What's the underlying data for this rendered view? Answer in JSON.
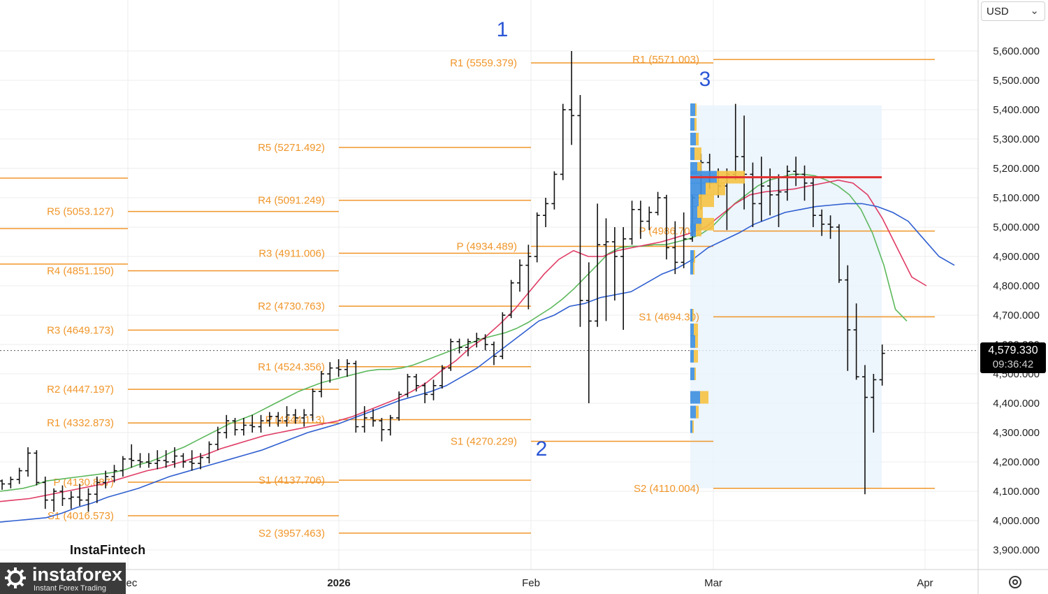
{
  "toolbar": {
    "currency": "USD"
  },
  "last_price": {
    "value": "4,579.330",
    "countdown": "09:36:42"
  },
  "branding": {
    "watermark": "InstaFintech",
    "logo_name": "instaforex",
    "logo_tagline": "Instant Forex Trading"
  },
  "colors": {
    "pivot": "#f0962a",
    "ma_fast": "#5cb85c",
    "ma_mid": "#e03c64",
    "ma_slow": "#2f5fd0",
    "poc": "#e03030",
    "profile_blue": "#3d8fe0",
    "profile_yellow": "#f5c242",
    "wave_label": "#2a56d6"
  },
  "chart_data": {
    "type": "line",
    "subtype": "ohlc-bars-with-pivot-levels",
    "yaxis": {
      "ticks": [
        "3,900.000",
        "4,000.000",
        "4,100.000",
        "4,200.000",
        "4,300.000",
        "4,400.000",
        "4,500.000",
        "4,600.000",
        "4,700.000",
        "4,800.000",
        "4,900.000",
        "5,000.000",
        "5,100.000",
        "5,200.000",
        "5,300.000",
        "5,400.000",
        "5,500.000",
        "5,600.000"
      ],
      "ylim": [
        3860,
        5660
      ]
    },
    "xaxis": {
      "ticks": [
        "Dec",
        "2026",
        "Feb",
        "Mar",
        "Apr"
      ]
    },
    "wave_labels": [
      {
        "text": "1",
        "x": "Jan 27",
        "y": 5660
      },
      {
        "text": "2",
        "x": "Feb 01",
        "y": 4200
      },
      {
        "text": "3",
        "x": "Feb 28",
        "y": 5490
      }
    ],
    "pivot_levels": [
      {
        "label": "R5 (5053.127)",
        "value": 5053.127,
        "period": "Dec"
      },
      {
        "label": "R4 (4851.150)",
        "value": 4851.15,
        "period": "Dec"
      },
      {
        "label": "R3 (4649.173)",
        "value": 4649.173,
        "period": "Dec"
      },
      {
        "label": "R2 (4447.197)",
        "value": 4447.197,
        "period": "Dec"
      },
      {
        "label": "R1 (4332.873)",
        "value": 4332.873,
        "period": "Dec"
      },
      {
        "label": "P (4130.887)",
        "value": 4130.887,
        "period": "Dec"
      },
      {
        "label": "S1 (4016.573)",
        "value": 4016.573,
        "period": "Dec"
      },
      {
        "label": "R5 (5271.492)",
        "value": 5271.492,
        "period": "Jan"
      },
      {
        "label": "R4 (5091.249)",
        "value": 5091.249,
        "period": "Jan"
      },
      {
        "label": "R3 (4911.006)",
        "value": 4911.006,
        "period": "Jan"
      },
      {
        "label": "R2 (4730.763)",
        "value": 4730.763,
        "period": "Jan"
      },
      {
        "label": "R1 (4524.356)",
        "value": 4524.356,
        "period": "Jan"
      },
      {
        "label": "P (4344.113)",
        "value": 4344.113,
        "period": "Jan"
      },
      {
        "label": "S1 (4137.706)",
        "value": 4137.706,
        "period": "Jan"
      },
      {
        "label": "S2 (3957.463)",
        "value": 3957.463,
        "period": "Jan"
      },
      {
        "label": "R1 (5559.379)",
        "value": 5559.379,
        "period": "Feb"
      },
      {
        "label": "P (4934.489)",
        "value": 4934.489,
        "period": "Feb"
      },
      {
        "label": "S1 (4270.229)",
        "value": 4270.229,
        "period": "Feb"
      },
      {
        "label": "R1 (5571.003)",
        "value": 5571.003,
        "period": "Mar"
      },
      {
        "label": "P (4986.702)",
        "value": 4986.702,
        "period": "Mar"
      },
      {
        "label": "S1 (4694.30)",
        "value": 4694.3,
        "period": "Mar"
      },
      {
        "label": "S2 (4110.004)",
        "value": 4110.004,
        "period": "Mar"
      }
    ],
    "ohlc_series": {
      "name": "",
      "bars": [
        [
          4135,
          4140,
          4105,
          4125
        ],
        [
          4125,
          4150,
          4110,
          4140
        ],
        [
          4140,
          4180,
          4125,
          4170
        ],
        [
          4170,
          4250,
          4150,
          4230
        ],
        [
          4230,
          4240,
          4120,
          4130
        ],
        [
          4130,
          4150,
          4040,
          4070
        ],
        [
          4070,
          4110,
          4030,
          4100
        ],
        [
          4100,
          4120,
          4050,
          4075
        ],
        [
          4075,
          4100,
          4040,
          4080
        ],
        [
          4080,
          4125,
          4050,
          4070
        ],
        [
          4070,
          4110,
          4030,
          4090
        ],
        [
          4090,
          4150,
          4060,
          4130
        ],
        [
          4130,
          4170,
          4110,
          4150
        ],
        [
          4150,
          4190,
          4130,
          4170
        ],
        [
          4170,
          4220,
          4150,
          4210
        ],
        [
          4210,
          4260,
          4180,
          4205
        ],
        [
          4205,
          4230,
          4180,
          4200
        ],
        [
          4200,
          4230,
          4180,
          4195
        ],
        [
          4195,
          4240,
          4175,
          4205
        ],
        [
          4205,
          4240,
          4180,
          4200
        ],
        [
          4200,
          4250,
          4180,
          4220
        ],
        [
          4220,
          4230,
          4180,
          4200
        ],
        [
          4200,
          4240,
          4170,
          4195
        ],
        [
          4195,
          4230,
          4175,
          4215
        ],
        [
          4215,
          4270,
          4195,
          4260
        ],
        [
          4260,
          4320,
          4240,
          4300
        ],
        [
          4300,
          4360,
          4280,
          4340
        ],
        [
          4340,
          4350,
          4290,
          4310
        ],
        [
          4310,
          4350,
          4290,
          4325
        ],
        [
          4325,
          4360,
          4300,
          4320
        ],
        [
          4320,
          4360,
          4300,
          4340
        ],
        [
          4340,
          4370,
          4320,
          4355
        ],
        [
          4355,
          4370,
          4320,
          4340
        ],
        [
          4340,
          4390,
          4320,
          4360
        ],
        [
          4360,
          4380,
          4330,
          4350
        ],
        [
          4350,
          4380,
          4320,
          4360
        ],
        [
          4360,
          4450,
          4340,
          4440
        ],
        [
          4440,
          4510,
          4420,
          4500
        ],
        [
          4500,
          4540,
          4470,
          4520
        ],
        [
          4520,
          4550,
          4490,
          4515
        ],
        [
          4515,
          4550,
          4490,
          4535
        ],
        [
          4535,
          4545,
          4300,
          4320
        ],
        [
          4320,
          4390,
          4300,
          4350
        ],
        [
          4350,
          4380,
          4320,
          4340
        ],
        [
          4340,
          4350,
          4270,
          4310
        ],
        [
          4310,
          4360,
          4290,
          4350
        ],
        [
          4350,
          4440,
          4340,
          4430
        ],
        [
          4430,
          4500,
          4420,
          4490
        ],
        [
          4490,
          4500,
          4440,
          4460
        ],
        [
          4460,
          4470,
          4400,
          4430
        ],
        [
          4430,
          4480,
          4410,
          4460
        ],
        [
          4460,
          4530,
          4450,
          4520
        ],
        [
          4520,
          4620,
          4510,
          4610
        ],
        [
          4610,
          4620,
          4570,
          4590
        ],
        [
          4590,
          4620,
          4560,
          4610
        ],
        [
          4610,
          4640,
          4590,
          4620
        ],
        [
          4620,
          4635,
          4580,
          4600
        ],
        [
          4600,
          4610,
          4530,
          4560
        ],
        [
          4560,
          4710,
          4550,
          4700
        ],
        [
          4700,
          4820,
          4690,
          4810
        ],
        [
          4810,
          4890,
          4780,
          4870
        ],
        [
          4870,
          4940,
          4720,
          4900
        ],
        [
          4900,
          5050,
          4880,
          5040
        ],
        [
          5040,
          5100,
          5000,
          5080
        ],
        [
          5080,
          5190,
          5060,
          5180
        ],
        [
          5180,
          5420,
          5160,
          5400
        ],
        [
          5400,
          5600,
          5280,
          5380
        ],
        [
          5380,
          5450,
          4660,
          4750
        ],
        [
          4750,
          4880,
          4400,
          4680
        ],
        [
          4680,
          5080,
          4660,
          4940
        ],
        [
          4940,
          5030,
          4680,
          4950
        ],
        [
          4950,
          5000,
          4750,
          4900
        ],
        [
          4900,
          5000,
          4650,
          4960
        ],
        [
          4960,
          5090,
          4940,
          5060
        ],
        [
          5060,
          5090,
          4960,
          5020
        ],
        [
          5020,
          5070,
          4990,
          5050
        ],
        [
          5050,
          5120,
          5040,
          5100
        ],
        [
          5100,
          5110,
          4890,
          4930
        ],
        [
          4930,
          5020,
          4840,
          4880
        ],
        [
          4880,
          5050,
          4860,
          4960
        ],
        [
          4960,
          5110,
          4950,
          5100
        ],
        [
          5100,
          5250,
          5060,
          5220
        ],
        [
          5220,
          5250,
          5130,
          5150
        ],
        [
          5150,
          5200,
          5100,
          5140
        ],
        [
          5140,
          5200,
          4990,
          5180
        ],
        [
          5180,
          5420,
          5160,
          5240
        ],
        [
          5240,
          5380,
          5060,
          5180
        ],
        [
          5180,
          5220,
          5000,
          5080
        ],
        [
          5080,
          5240,
          5020,
          5140
        ],
        [
          5140,
          5200,
          5040,
          5110
        ],
        [
          5110,
          5180,
          5000,
          5120
        ],
        [
          5120,
          5210,
          5090,
          5190
        ],
        [
          5190,
          5240,
          5140,
          5180
        ],
        [
          5180,
          5210,
          5090,
          5150
        ],
        [
          5150,
          5170,
          5000,
          5040
        ],
        [
          5040,
          5060,
          4970,
          5010
        ],
        [
          5010,
          5040,
          4960,
          5000
        ],
        [
          5000,
          5010,
          4810,
          4820
        ],
        [
          4820,
          4870,
          4510,
          4650
        ],
        [
          4650,
          4740,
          4480,
          4490
        ],
        [
          4490,
          4530,
          4090,
          4420
        ],
        [
          4420,
          4500,
          4300,
          4480
        ],
        [
          4480,
          4600,
          4460,
          4570
        ]
      ]
    },
    "ma_series": [
      {
        "name": "",
        "values": [
          4100,
          4105,
          4110,
          4120,
          4135,
          4140,
          4145,
          4150,
          4155,
          4160,
          4165,
          4175,
          4190,
          4200,
          4215,
          4235,
          4250,
          4270,
          4290,
          4310,
          4330,
          4345,
          4360,
          4380,
          4400,
          4420,
          4440,
          4455,
          4470,
          4480,
          4490,
          4500,
          4510,
          4515,
          4515,
          4520,
          4530,
          4545,
          4560,
          4575,
          4590,
          4605,
          4620,
          4630,
          4640,
          4655,
          4675,
          4700,
          4725,
          4755,
          4790,
          4830,
          4870,
          4910,
          4930,
          4935,
          4935,
          4940,
          4940,
          4950,
          4960,
          4975,
          5000,
          5040,
          5080,
          5110,
          5140,
          5160,
          5170,
          5180,
          5180,
          5175,
          5160,
          5140,
          5110,
          5060,
          4980,
          4870,
          4720,
          4680
        ]
      },
      {
        "name": "",
        "values": [
          4065,
          4070,
          4075,
          4085,
          4095,
          4105,
          4115,
          4125,
          4140,
          4155,
          4170,
          4180,
          4195,
          4210,
          4225,
          4245,
          4260,
          4275,
          4290,
          4300,
          4310,
          4320,
          4330,
          4340,
          4355,
          4375,
          4395,
          4415,
          4440,
          4470,
          4510,
          4545,
          4590,
          4625,
          4670,
          4720,
          4780,
          4840,
          4890,
          4920,
          4900,
          4900,
          4920,
          4930,
          4940,
          4950,
          4965,
          4980,
          5000,
          5040,
          5080,
          5110,
          5120,
          5125,
          5130,
          5140,
          5150,
          5160,
          5150,
          5110,
          5030,
          4930,
          4830,
          4800
        ]
      },
      {
        "name": "",
        "values": [
          3995,
          4000,
          4005,
          4010,
          4025,
          4045,
          4060,
          4080,
          4095,
          4110,
          4130,
          4150,
          4165,
          4180,
          4195,
          4210,
          4225,
          4240,
          4260,
          4280,
          4300,
          4315,
          4330,
          4350,
          4370,
          4390,
          4410,
          4425,
          4440,
          4460,
          4490,
          4520,
          4560,
          4600,
          4640,
          4680,
          4700,
          4730,
          4740,
          4760,
          4770,
          4780,
          4810,
          4840,
          4860,
          4890,
          4930,
          4955,
          4980,
          5010,
          5030,
          5050,
          5060,
          5070,
          5075,
          5080,
          5080,
          5070,
          5050,
          5020,
          4960,
          4900,
          4870
        ]
      }
    ]
  }
}
